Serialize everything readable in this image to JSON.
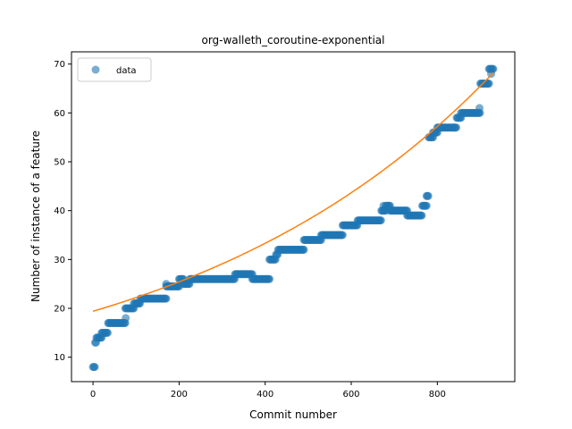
{
  "chart_data": {
    "type": "scatter",
    "title": "org-walleth_coroutine-exponential",
    "xlabel": "Commit number",
    "ylabel": "Number of instance of a feature",
    "xlim": [
      -50,
      980
    ],
    "ylim": [
      5,
      72.5
    ],
    "xticks": [
      0,
      200,
      400,
      600,
      800
    ],
    "yticks": [
      10,
      20,
      30,
      40,
      50,
      60,
      70
    ],
    "legend": {
      "position": "top-left",
      "entries": [
        "data"
      ]
    },
    "colors": {
      "data": "#1f77b4",
      "fit": "#ff7f0e"
    },
    "series": [
      {
        "name": "data",
        "kind": "scatter",
        "segments": [
          [
            0,
            5,
            8
          ],
          [
            5,
            8,
            13
          ],
          [
            8,
            20,
            14
          ],
          [
            20,
            35,
            15
          ],
          [
            35,
            75,
            17
          ],
          [
            75,
            95,
            20
          ],
          [
            95,
            110,
            21
          ],
          [
            110,
            170,
            22
          ],
          [
            170,
            200,
            24.5
          ],
          [
            200,
            210,
            26
          ],
          [
            210,
            225,
            25
          ],
          [
            225,
            330,
            26
          ],
          [
            330,
            370,
            27
          ],
          [
            370,
            410,
            26
          ],
          [
            410,
            425,
            30
          ],
          [
            425,
            430,
            31
          ],
          [
            430,
            490,
            32
          ],
          [
            490,
            530,
            34
          ],
          [
            530,
            580,
            35
          ],
          [
            580,
            615,
            37
          ],
          [
            615,
            670,
            38
          ],
          [
            670,
            680,
            40
          ],
          [
            680,
            690,
            41
          ],
          [
            690,
            730,
            40
          ],
          [
            730,
            765,
            39
          ],
          [
            765,
            775,
            41
          ],
          [
            775,
            780,
            43
          ],
          [
            780,
            790,
            55
          ],
          [
            790,
            800,
            56
          ],
          [
            800,
            845,
            57
          ],
          [
            845,
            855,
            59
          ],
          [
            855,
            900,
            60
          ],
          [
            900,
            920,
            66
          ],
          [
            920,
            930,
            69
          ]
        ],
        "extra_points": [
          [
            76,
            18
          ],
          [
            170,
            25
          ],
          [
            675,
            41
          ],
          [
            898,
            61
          ],
          [
            925,
            68
          ]
        ]
      },
      {
        "name": "",
        "kind": "line",
        "model": "exponential",
        "a": 19.4,
        "b": 0.001352,
        "x_range": [
          0,
          930
        ]
      }
    ]
  }
}
